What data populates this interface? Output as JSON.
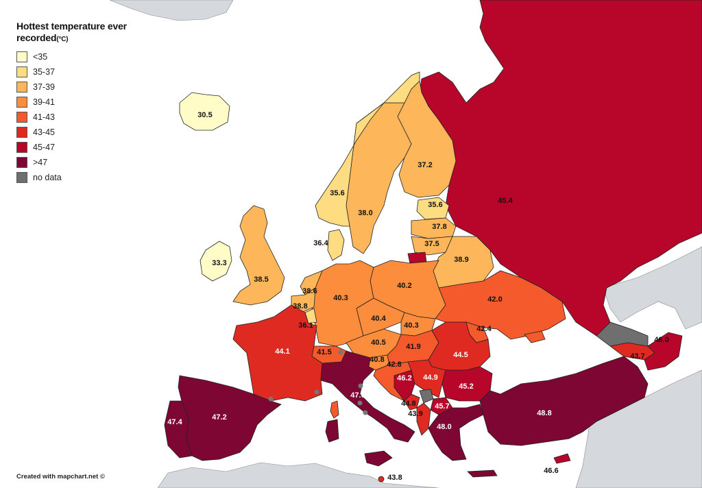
{
  "legend": {
    "title_line1": "Hottest temperature ever",
    "title_line2": "recorded",
    "title_unit": "(°C)",
    "items": [
      {
        "label": "<35",
        "color": "#fffcc8"
      },
      {
        "label": "35-37",
        "color": "#fedd82"
      },
      {
        "label": "37-39",
        "color": "#fdb75a"
      },
      {
        "label": "39-41",
        "color": "#fb8d3c"
      },
      {
        "label": "41-43",
        "color": "#f45a2c"
      },
      {
        "label": "43-45",
        "color": "#df2a22"
      },
      {
        "label": "45-47",
        "color": "#b8062a"
      },
      {
        "label": ">47",
        "color": "#7e0632"
      },
      {
        "label": "no data",
        "color": "#6f6f6f"
      }
    ]
  },
  "credit": "Created with mapchart.net ©",
  "colors": {
    "sea": "#ffffff",
    "non_europe": "#d5d8dc",
    "border": "#222222"
  },
  "countries": [
    {
      "id": "iceland",
      "value": "30.5",
      "class": "<35"
    },
    {
      "id": "ireland",
      "value": "33.3",
      "class": "<35"
    },
    {
      "id": "united-kingdom",
      "value": "38.5",
      "class": "37-39"
    },
    {
      "id": "norway",
      "value": "35.6",
      "class": "35-37"
    },
    {
      "id": "sweden",
      "value": "38.0",
      "class": "37-39"
    },
    {
      "id": "finland",
      "value": "37.2",
      "class": "37-39"
    },
    {
      "id": "denmark",
      "value": "36.4",
      "class": "35-37"
    },
    {
      "id": "estonia",
      "value": "35.6",
      "class": "35-37"
    },
    {
      "id": "latvia",
      "value": "37.8",
      "class": "37-39"
    },
    {
      "id": "lithuania",
      "value": "37.5",
      "class": "37-39"
    },
    {
      "id": "belarus",
      "value": "38.9",
      "class": "37-39"
    },
    {
      "id": "russia",
      "value": "45.4",
      "class": "45-47"
    },
    {
      "id": "netherlands",
      "value": "38.6",
      "class": "37-39"
    },
    {
      "id": "belgium",
      "value": "38.8",
      "class": "37-39"
    },
    {
      "id": "luxembourg",
      "value": "36.1",
      "class": "35-37"
    },
    {
      "id": "germany",
      "value": "40.3",
      "class": "39-41"
    },
    {
      "id": "poland",
      "value": "40.2",
      "class": "39-41"
    },
    {
      "id": "czechia",
      "value": "40.4",
      "class": "39-41"
    },
    {
      "id": "slovakia",
      "value": "40.3",
      "class": "39-41"
    },
    {
      "id": "austria",
      "value": "40.5",
      "class": "39-41"
    },
    {
      "id": "ukraine",
      "value": "42.0",
      "class": "41-43"
    },
    {
      "id": "moldova",
      "value": "42.4",
      "class": "41-43"
    },
    {
      "id": "france",
      "value": "44.1",
      "class": "43-45"
    },
    {
      "id": "switzerland",
      "value": "41.5",
      "class": "41-43"
    },
    {
      "id": "slovenia",
      "value": "40.8",
      "class": "39-41"
    },
    {
      "id": "hungary",
      "value": "41.9",
      "class": "41-43"
    },
    {
      "id": "romania",
      "value": "44.5",
      "class": "43-45"
    },
    {
      "id": "croatia",
      "value": "42.8",
      "class": "41-43"
    },
    {
      "id": "bosnia",
      "value": "46.2",
      "class": "45-47"
    },
    {
      "id": "serbia",
      "value": "44.9",
      "class": "43-45"
    },
    {
      "id": "bulgaria",
      "value": "45.2",
      "class": "45-47"
    },
    {
      "id": "montenegro",
      "value": "44.8",
      "class": "43-45"
    },
    {
      "id": "albania",
      "value": "43.9",
      "class": "43-45"
    },
    {
      "id": "north-macedonia",
      "value": "45.7",
      "class": "45-47"
    },
    {
      "id": "greece",
      "value": "48.0",
      "class": ">47"
    },
    {
      "id": "italy",
      "value": "47.0",
      "class": ">47"
    },
    {
      "id": "malta",
      "value": "43.8",
      "class": "43-45"
    },
    {
      "id": "spain",
      "value": "47.2",
      "class": ">47"
    },
    {
      "id": "portugal",
      "value": "47.4",
      "class": ">47"
    },
    {
      "id": "turkey",
      "value": "48.8",
      "class": ">47"
    },
    {
      "id": "cyprus",
      "value": "46.6",
      "class": "45-47"
    },
    {
      "id": "georgia",
      "value": "43.7",
      "class": "43-45"
    },
    {
      "id": "armenia-azerbaijan",
      "value": "46.0",
      "class": "45-47"
    },
    {
      "id": "kosovo",
      "value": "",
      "class": "no data"
    },
    {
      "id": "north-caucasus",
      "value": "",
      "class": "no data"
    }
  ]
}
